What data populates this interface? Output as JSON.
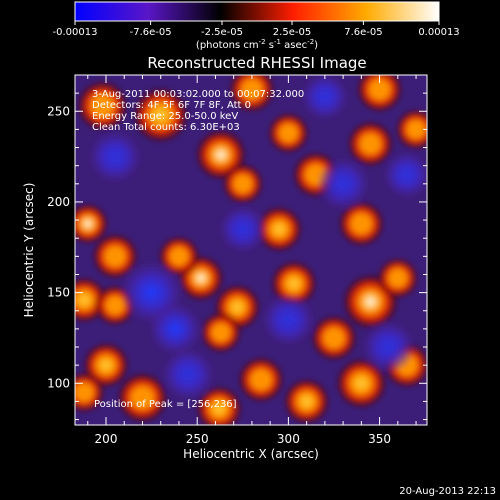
{
  "colorbar": {
    "tick_labels": [
      "-0.00013",
      "-7.6e-05",
      "-2.5e-05",
      "2.5e-05",
      "7.6e-05",
      "0.00013"
    ],
    "tick_values": [
      -0.00013,
      -7.6e-05,
      -2.5e-05,
      2.5e-05,
      7.6e-05,
      0.00013
    ],
    "range": [
      -0.00013,
      0.00013
    ],
    "unit_label_parts": {
      "a": "(photons cm",
      "a_sup": "-2",
      "b": " s",
      "b_sup": "-1",
      "c": " asec",
      "c_sup": "-2",
      "d": ")"
    },
    "colors": [
      "#0000ff",
      "#5a16c8",
      "#000000",
      "#ff1e00",
      "#ffaa00",
      "#ffffff"
    ]
  },
  "chart_data": {
    "type": "heatmap",
    "title": "Reconstructed RHESSI Image",
    "xlabel": "Heliocentric X (arcsec)",
    "ylabel": "Heliocentric Y (arcsec)",
    "xlim": [
      183,
      376
    ],
    "ylim": [
      77,
      270
    ],
    "xticks": [
      200,
      250,
      300,
      350
    ],
    "yticks": [
      100,
      150,
      200,
      250
    ],
    "xtick_labels": [
      "200",
      "250",
      "300",
      "350"
    ],
    "ytick_labels": [
      "100",
      "150",
      "200",
      "250"
    ],
    "background_color": "#3c1e78",
    "blobs": [
      {
        "x": 263,
        "y": 226,
        "a": 1.0,
        "s": 10
      },
      {
        "x": 230,
        "y": 248,
        "a": 0.85,
        "s": 11
      },
      {
        "x": 198,
        "y": 253,
        "a": 0.7,
        "s": 10
      },
      {
        "x": 190,
        "y": 188,
        "a": 0.9,
        "s": 8
      },
      {
        "x": 205,
        "y": 170,
        "a": 0.6,
        "s": 9
      },
      {
        "x": 188,
        "y": 146,
        "a": 0.75,
        "s": 9
      },
      {
        "x": 205,
        "y": 143,
        "a": 0.55,
        "s": 8
      },
      {
        "x": 252,
        "y": 158,
        "a": 0.95,
        "s": 9
      },
      {
        "x": 240,
        "y": 170,
        "a": 0.6,
        "s": 8
      },
      {
        "x": 272,
        "y": 142,
        "a": 0.8,
        "s": 9
      },
      {
        "x": 263,
        "y": 128,
        "a": 0.7,
        "s": 8
      },
      {
        "x": 303,
        "y": 155,
        "a": 0.8,
        "s": 9
      },
      {
        "x": 295,
        "y": 185,
        "a": 0.75,
        "s": 9
      },
      {
        "x": 340,
        "y": 188,
        "a": 0.7,
        "s": 9
      },
      {
        "x": 345,
        "y": 145,
        "a": 0.95,
        "s": 11
      },
      {
        "x": 360,
        "y": 158,
        "a": 0.6,
        "s": 8
      },
      {
        "x": 325,
        "y": 125,
        "a": 0.6,
        "s": 9
      },
      {
        "x": 340,
        "y": 100,
        "a": 0.85,
        "s": 10
      },
      {
        "x": 365,
        "y": 110,
        "a": 0.6,
        "s": 9
      },
      {
        "x": 310,
        "y": 90,
        "a": 0.8,
        "s": 9
      },
      {
        "x": 285,
        "y": 102,
        "a": 0.7,
        "s": 9
      },
      {
        "x": 262,
        "y": 86,
        "a": 0.75,
        "s": 9
      },
      {
        "x": 220,
        "y": 92,
        "a": 0.65,
        "s": 10
      },
      {
        "x": 200,
        "y": 110,
        "a": 0.8,
        "s": 9
      },
      {
        "x": 188,
        "y": 95,
        "a": 0.6,
        "s": 8
      },
      {
        "x": 315,
        "y": 215,
        "a": 0.65,
        "s": 9
      },
      {
        "x": 345,
        "y": 232,
        "a": 0.6,
        "s": 9
      },
      {
        "x": 350,
        "y": 262,
        "a": 0.65,
        "s": 9
      },
      {
        "x": 280,
        "y": 262,
        "a": 0.6,
        "s": 9
      },
      {
        "x": 300,
        "y": 238,
        "a": 0.5,
        "s": 8
      },
      {
        "x": 370,
        "y": 240,
        "a": 0.6,
        "s": 8
      },
      {
        "x": 275,
        "y": 210,
        "a": 0.55,
        "s": 8
      },
      {
        "x": 225,
        "y": 150,
        "a": -0.75,
        "s": 12
      },
      {
        "x": 238,
        "y": 130,
        "a": -0.7,
        "s": 10
      },
      {
        "x": 205,
        "y": 225,
        "a": -0.55,
        "s": 10
      },
      {
        "x": 300,
        "y": 135,
        "a": -0.6,
        "s": 10
      },
      {
        "x": 330,
        "y": 210,
        "a": -0.5,
        "s": 10
      },
      {
        "x": 245,
        "y": 105,
        "a": -0.5,
        "s": 10
      },
      {
        "x": 355,
        "y": 120,
        "a": -0.5,
        "s": 10
      },
      {
        "x": 275,
        "y": 185,
        "a": -0.45,
        "s": 9
      },
      {
        "x": 320,
        "y": 258,
        "a": -0.5,
        "s": 9
      },
      {
        "x": 365,
        "y": 215,
        "a": -0.45,
        "s": 9
      }
    ]
  },
  "annotations": {
    "time_range": "3-Aug-2011 00:03:02.000 to 00:07:32.000",
    "detectors": "Detectors: 4F 5F 6F 7F 8F, Att 0",
    "energy_range": "Energy Range: 25.0-50.0 keV",
    "clean": "Clean    Total counts: 6.30E+03",
    "peak_position": "Position of Peak = [256,236]"
  },
  "footer": {
    "date": "20-Aug-2013 22:13"
  }
}
